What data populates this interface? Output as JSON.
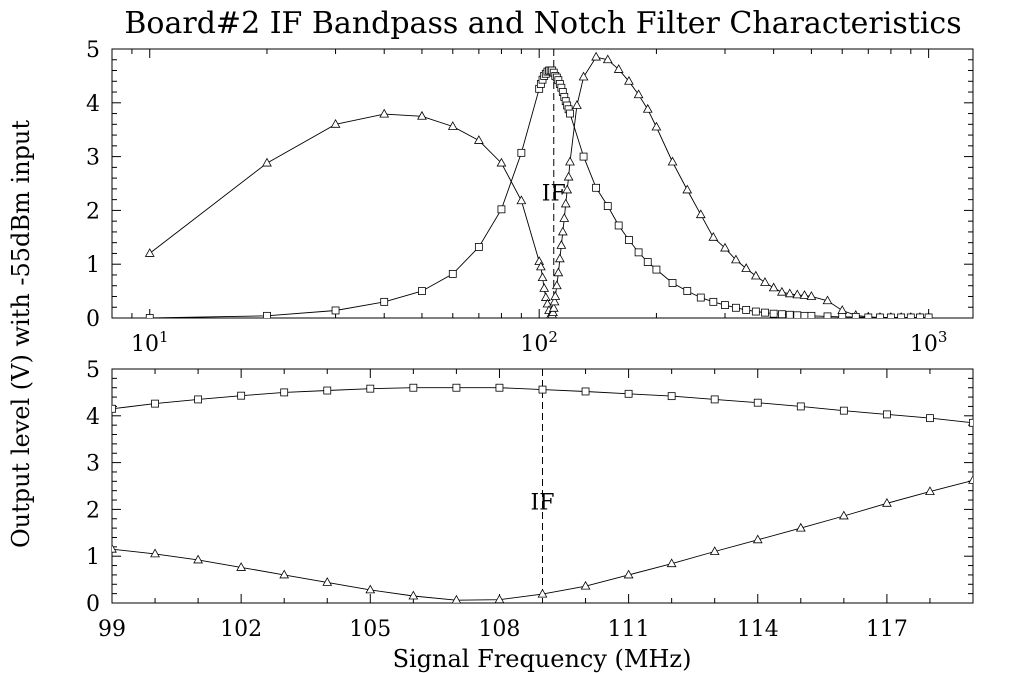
{
  "chart_data": {
    "title": "Board#2 IF Bandpass and Notch Filter Characteristics",
    "ylabel": "Output level (V) with -55dBm input",
    "xlabel": "Signal Frequency (MHz)",
    "if_label": "IF",
    "if_frequency": 109,
    "panels": [
      {
        "type": "line",
        "x_scale": "log",
        "xlim": [
          8,
          1300
        ],
        "ylim": [
          0,
          5
        ],
        "x_ticks": [
          {
            "v": 10,
            "base": "10",
            "exp": "1"
          },
          {
            "v": 100,
            "base": "10",
            "exp": "2"
          },
          {
            "v": 1000,
            "base": "10",
            "exp": "3"
          }
        ],
        "y_ticks": [
          "0",
          "1",
          "2",
          "3",
          "4",
          "5"
        ],
        "series": [
          {
            "marker": "triangle",
            "x": [
              10,
              20,
              30,
              40,
              50,
              60,
              70,
              80,
              90,
              100,
              101,
              102,
              103,
              104,
              105,
              106,
              107,
              108,
              108.5,
              109,
              109.5,
              110,
              111,
              112,
              113,
              114,
              115,
              116,
              117,
              118,
              119,
              120,
              125,
              130,
              140,
              150,
              160,
              170,
              180,
              190,
              200,
              220,
              240,
              260,
              280,
              300,
              320,
              340,
              360,
              380,
              400,
              420,
              440,
              460,
              480,
              500,
              550,
              600,
              650,
              700,
              750,
              800,
              850,
              900,
              950,
              1000
            ],
            "y": [
              1.2,
              2.88,
              3.6,
              3.79,
              3.75,
              3.56,
              3.3,
              2.88,
              2.18,
              1.05,
              0.95,
              0.75,
              0.55,
              0.38,
              0.26,
              0.14,
              0.05,
              0.06,
              0.1,
              0.18,
              0.3,
              0.4,
              0.6,
              0.84,
              1.1,
              1.35,
              1.6,
              1.85,
              2.12,
              2.38,
              2.62,
              2.9,
              3.95,
              4.48,
              4.85,
              4.8,
              4.62,
              4.4,
              4.15,
              3.88,
              3.55,
              2.9,
              2.38,
              1.92,
              1.5,
              1.3,
              1.08,
              0.92,
              0.78,
              0.66,
              0.56,
              0.48,
              0.45,
              0.43,
              0.42,
              0.4,
              0.32,
              0.14,
              0.05,
              0.02,
              0.01,
              0.01,
              0.01,
              0.01,
              0.01,
              0.01
            ]
          },
          {
            "marker": "square",
            "x": [
              10,
              20,
              30,
              40,
              50,
              60,
              70,
              80,
              90,
              100,
              101,
              102,
              103,
              104,
              105,
              106,
              107,
              108,
              109,
              110,
              111,
              112,
              113,
              114,
              115,
              116,
              117,
              118,
              119,
              120,
              130,
              140,
              150,
              160,
              170,
              180,
              190,
              200,
              220,
              240,
              260,
              280,
              300,
              320,
              340,
              360,
              380,
              400,
              420,
              440,
              460,
              480,
              500,
              550,
              600,
              650,
              700,
              750,
              800,
              850,
              900,
              950,
              1000
            ],
            "y": [
              0.0,
              0.04,
              0.14,
              0.3,
              0.5,
              0.82,
              1.32,
              2.02,
              3.07,
              4.26,
              4.35,
              4.43,
              4.5,
              4.54,
              4.58,
              4.6,
              4.6,
              4.6,
              4.56,
              4.5,
              4.47,
              4.42,
              4.35,
              4.28,
              4.2,
              4.11,
              4.03,
              3.95,
              3.88,
              3.8,
              3.0,
              2.42,
              2.08,
              1.72,
              1.45,
              1.22,
              1.04,
              0.9,
              0.65,
              0.5,
              0.38,
              0.3,
              0.24,
              0.19,
              0.15,
              0.12,
              0.1,
              0.08,
              0.07,
              0.06,
              0.05,
              0.04,
              0.04,
              0.03,
              0.02,
              0.02,
              0.01,
              0.01,
              0.01,
              0.01,
              0.01,
              0.01,
              0.01
            ]
          }
        ]
      },
      {
        "type": "line",
        "x_scale": "linear",
        "xlim": [
          99,
          119
        ],
        "ylim": [
          0,
          5
        ],
        "x_ticks": [
          99,
          102,
          105,
          108,
          111,
          114,
          117
        ],
        "y_ticks": [
          "0",
          "1",
          "2",
          "3",
          "4",
          "5"
        ],
        "series": [
          {
            "marker": "square",
            "x": [
              99,
              100,
              101,
              102,
              103,
              104,
              105,
              106,
              107,
              108,
              109,
              110,
              111,
              112,
              113,
              114,
              115,
              116,
              117,
              118,
              119
            ],
            "y": [
              4.15,
              4.26,
              4.35,
              4.43,
              4.5,
              4.54,
              4.58,
              4.6,
              4.6,
              4.6,
              4.56,
              4.52,
              4.47,
              4.42,
              4.35,
              4.28,
              4.2,
              4.11,
              4.03,
              3.95,
              3.85
            ]
          },
          {
            "marker": "triangle",
            "x": [
              99,
              100,
              101,
              102,
              103,
              104,
              105,
              106,
              107,
              108,
              109,
              110,
              111,
              112,
              113,
              114,
              115,
              116,
              117,
              118,
              119
            ],
            "y": [
              1.15,
              1.05,
              0.92,
              0.76,
              0.6,
              0.44,
              0.28,
              0.15,
              0.06,
              0.07,
              0.19,
              0.36,
              0.6,
              0.84,
              1.1,
              1.35,
              1.6,
              1.86,
              2.13,
              2.38,
              2.62
            ]
          }
        ]
      }
    ]
  }
}
